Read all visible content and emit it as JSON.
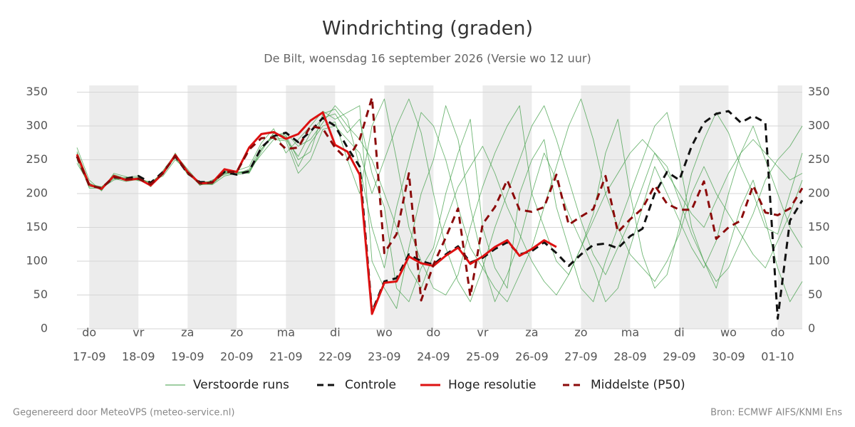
{
  "chart_data": {
    "type": "line",
    "title": "Windrichting (graden)",
    "subtitle": "De Bilt, woensdag 16 september 2026 (Versie wo 12 uur)",
    "footer_left": "Gegenereerd door MeteoVPS (meteo-service.nl)",
    "footer_right": "Bron: ECMWF AIFS/KNMI Ens",
    "xlim": [
      -0.25,
      14.5
    ],
    "xticks": [
      {
        "value": 0,
        "label": "do",
        "date": "17-09"
      },
      {
        "value": 1,
        "label": "vr",
        "date": "18-09"
      },
      {
        "value": 2,
        "label": "za",
        "date": "19-09"
      },
      {
        "value": 3,
        "label": "zo",
        "date": "20-09"
      },
      {
        "value": 4,
        "label": "ma",
        "date": "21-09"
      },
      {
        "value": 5,
        "label": "di",
        "date": "22-09"
      },
      {
        "value": 6,
        "label": "wo",
        "date": "23-09"
      },
      {
        "value": 7,
        "label": "do",
        "date": "24-09"
      },
      {
        "value": 8,
        "label": "vr",
        "date": "25-09"
      },
      {
        "value": 9,
        "label": "za",
        "date": "26-09"
      },
      {
        "value": 10,
        "label": "zo",
        "date": "27-09"
      },
      {
        "value": 11,
        "label": "ma",
        "date": "28-09"
      },
      {
        "value": 12,
        "label": "di",
        "date": "29-09"
      },
      {
        "value": 13,
        "label": "wo",
        "date": "30-09"
      },
      {
        "value": 14,
        "label": "do",
        "date": "01-10"
      }
    ],
    "ylim": [
      0,
      360
    ],
    "yticks": [
      0,
      50,
      100,
      150,
      200,
      250,
      300,
      350
    ],
    "y2lim": [
      0,
      360
    ],
    "y2ticks": [
      0,
      50,
      100,
      150,
      200,
      250,
      300,
      350
    ],
    "grid": true,
    "shade_alternate_days": true,
    "x": [
      -0.25,
      0,
      0.25,
      0.5,
      0.75,
      1,
      1.25,
      1.5,
      1.75,
      2,
      2.25,
      2.5,
      2.75,
      3,
      3.25,
      3.5,
      3.75,
      4,
      4.25,
      4.5,
      4.75,
      5,
      5.25,
      5.5,
      5.75,
      6,
      6.25,
      6.5,
      6.75,
      7,
      7.25,
      7.5,
      7.75,
      8,
      8.25,
      8.5,
      8.75,
      9,
      9.25,
      9.5,
      9.75,
      10,
      10.25,
      10.5,
      10.75,
      11,
      11.25,
      11.5,
      11.75,
      12,
      12.25,
      12.5,
      12.75,
      13,
      13.25,
      13.5,
      13.75,
      14,
      14.25,
      14.5
    ],
    "ensemble": {
      "name": "Verstoorde runs",
      "color": "#3f9e45",
      "runs": [
        [
          262,
          216,
          205,
          228,
          222,
          224,
          215,
          232,
          255,
          230,
          213,
          214,
          230,
          229,
          236,
          270,
          283,
          280,
          255,
          290,
          312,
          318,
          290,
          310,
          230,
          180,
          60,
          40,
          90,
          120,
          200,
          260,
          310,
          150,
          90,
          60,
          200,
          250,
          280,
          180,
          120,
          60,
          40,
          100,
          150,
          200,
          250,
          300,
          320,
          250,
          150,
          100,
          60,
          120,
          180,
          220,
          160,
          90,
          40,
          70
        ],
        [
          250,
          210,
          209,
          222,
          218,
          221,
          214,
          228,
          260,
          228,
          218,
          216,
          232,
          231,
          230,
          262,
          290,
          284,
          240,
          275,
          300,
          306,
          250,
          200,
          300,
          340,
          250,
          150,
          100,
          60,
          50,
          80,
          150,
          210,
          260,
          300,
          330,
          200,
          150,
          100,
          80,
          120,
          170,
          260,
          310,
          200,
          110,
          60,
          80,
          150,
          230,
          280,
          320,
          290,
          240,
          200,
          150,
          140,
          200,
          260
        ],
        [
          268,
          220,
          204,
          230,
          225,
          219,
          218,
          226,
          250,
          234,
          212,
          220,
          228,
          234,
          240,
          275,
          296,
          260,
          280,
          300,
          322,
          310,
          320,
          330,
          100,
          60,
          30,
          120,
          200,
          250,
          330,
          280,
          180,
          100,
          40,
          80,
          130,
          200,
          260,
          220,
          170,
          130,
          90,
          40,
          60,
          120,
          180,
          240,
          200,
          160,
          120,
          90,
          130,
          200,
          260,
          300,
          250,
          200,
          150,
          120
        ],
        [
          255,
          208,
          208,
          220,
          224,
          226,
          210,
          234,
          258,
          236,
          215,
          213,
          226,
          230,
          234,
          258,
          280,
          278,
          230,
          250,
          295,
          300,
          280,
          260,
          200,
          250,
          300,
          340,
          290,
          200,
          120,
          70,
          40,
          90,
          150,
          200,
          250,
          300,
          330,
          280,
          220,
          160,
          110,
          80,
          120,
          160,
          210,
          260,
          240,
          190,
          140,
          100,
          70,
          90,
          130,
          170,
          220,
          250,
          270,
          300
        ],
        [
          245,
          214,
          210,
          225,
          219,
          223,
          216,
          231,
          253,
          229,
          217,
          218,
          234,
          228,
          231,
          266,
          286,
          290,
          270,
          280,
          305,
          330,
          310,
          240,
          150,
          90,
          180,
          250,
          320,
          300,
          250,
          180,
          120,
          90,
          60,
          40,
          80,
          120,
          180,
          240,
          300,
          340,
          280,
          200,
          150,
          110,
          90,
          70,
          100,
          140,
          200,
          240,
          200,
          170,
          140,
          110,
          90,
          130,
          170,
          220
        ],
        [
          260,
          212,
          206,
          227,
          221,
          220,
          213,
          229,
          256,
          231,
          214,
          215,
          231,
          232,
          233,
          265,
          289,
          286,
          250,
          262,
          318,
          325,
          300,
          280,
          250,
          200,
          150,
          90,
          60,
          110,
          160,
          210,
          240,
          270,
          230,
          180,
          140,
          100,
          70,
          50,
          80,
          120,
          160,
          200,
          230,
          260,
          280,
          260,
          230,
          200,
          170,
          150,
          190,
          230,
          260,
          280,
          260,
          240,
          220,
          230
        ]
      ]
    },
    "series": [
      {
        "name": "Controle",
        "color": "#111111",
        "dash": "dashed",
        "values": [
          255,
          212,
          208,
          224,
          222,
          226,
          216,
          232,
          255,
          230,
          217,
          217,
          232,
          228,
          233,
          268,
          285,
          290,
          276,
          292,
          312,
          300,
          268,
          240,
          25,
          70,
          75,
          110,
          100,
          95,
          110,
          122,
          98,
          105,
          118,
          128,
          110,
          115,
          128,
          112,
          93,
          110,
          124,
          126,
          119,
          137,
          148,
          200,
          232,
          220,
          270,
          305,
          318,
          322,
          305,
          315,
          305,
          15,
          160,
          190
        ]
      },
      {
        "name": "Hoge resolutie",
        "color": "#dd1111",
        "dash": "solid",
        "values": [
          258,
          213,
          207,
          226,
          220,
          222,
          212,
          230,
          257,
          232,
          215,
          216,
          236,
          232,
          268,
          288,
          291,
          281,
          288,
          308,
          320,
          272,
          262,
          228,
          22,
          68,
          70,
          107,
          97,
          93,
          108,
          120,
          96,
          107,
          121,
          131,
          108,
          118,
          131,
          121,
          null,
          null,
          null,
          null,
          null,
          null,
          null,
          null,
          null,
          null,
          null,
          null,
          null,
          null,
          null,
          null,
          null,
          null,
          null,
          null
        ]
      },
      {
        "name": "Middelste (P50)",
        "color": "#8b0a0a",
        "dash": "dashed",
        "values": [
          255,
          212,
          208,
          225,
          221,
          222,
          214,
          230,
          256,
          231,
          215,
          216,
          232,
          232,
          265,
          282,
          283,
          266,
          268,
          300,
          296,
          268,
          250,
          280,
          342,
          112,
          140,
          230,
          42,
          95,
          135,
          178,
          48,
          155,
          180,
          220,
          176,
          173,
          180,
          228,
          154,
          166,
          177,
          226,
          143,
          162,
          178,
          212,
          185,
          176,
          176,
          218,
          133,
          150,
          160,
          212,
          172,
          168,
          178,
          208
        ]
      }
    ]
  }
}
